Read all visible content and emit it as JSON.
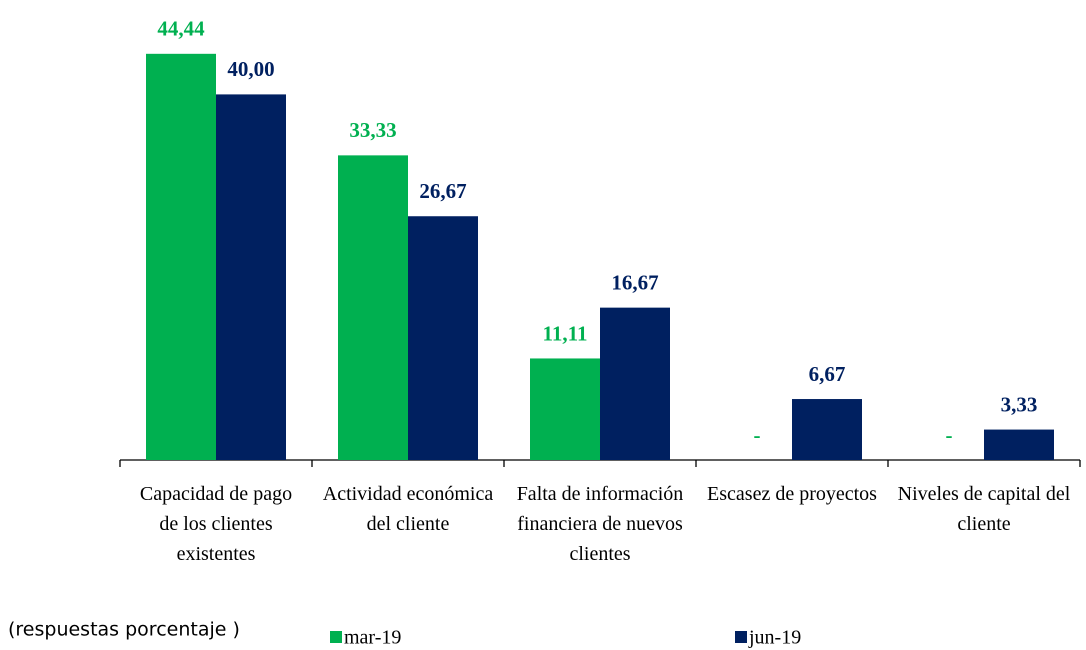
{
  "chart_data": {
    "type": "bar",
    "subtitle": "(respuestas porcentaje )",
    "categories": [
      "Capacidad de pago de los clientes existentes",
      "Actividad económica del cliente",
      "Falta de información financiera de nuevos clientes",
      "Escasez de proyectos",
      "Niveles de capital del cliente"
    ],
    "series": [
      {
        "name": "mar-19",
        "color": "#00b050",
        "values": [
          44.44,
          33.33,
          11.11,
          0,
          0
        ],
        "value_labels": [
          "44,44",
          "33,33",
          "11,11",
          "-",
          "-"
        ]
      },
      {
        "name": "jun-19",
        "color": "#002060",
        "values": [
          40.0,
          26.67,
          16.67,
          6.67,
          3.33
        ],
        "value_labels": [
          "40,00",
          "26,67",
          "16,67",
          "6,67",
          "3,33"
        ]
      }
    ],
    "ylim": [
      0,
      50
    ],
    "legend": "bottom"
  }
}
